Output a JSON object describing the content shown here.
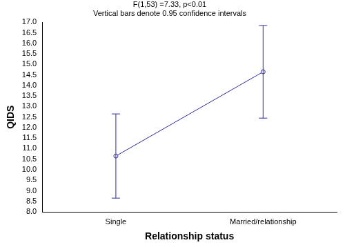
{
  "chart_data": {
    "type": "line",
    "title": [
      "F(1,53) =7.33, p<0.01",
      "Vertical bars denote 0.95 confidence intervals"
    ],
    "x_label": "Relationship status",
    "y_label": "QIDS",
    "categories": [
      "Single",
      "Married/relationship"
    ],
    "values": [
      10.65,
      14.65
    ],
    "ci_low": [
      8.65,
      12.45
    ],
    "ci_high": [
      12.65,
      16.85
    ],
    "color": "#2a2aa0",
    "marker": "circle",
    "line_style": "solid",
    "grid": false,
    "ylim": [
      8.0,
      17.0
    ],
    "yticks": [
      {
        "value": 8,
        "label": "8.0"
      },
      8.5,
      {
        "value": 9,
        "label": "9.0"
      },
      9.5,
      {
        "value": 10,
        "label": "10.0"
      },
      10.5,
      {
        "value": 11,
        "label": "11.0"
      },
      11.5,
      {
        "value": 12,
        "label": "12.0"
      },
      12.5,
      {
        "value": 13,
        "label": "13.0"
      },
      13.5,
      {
        "value": 14,
        "label": "14.0"
      },
      14.5,
      {
        "value": 15,
        "label": "15.0"
      },
      15.5,
      {
        "value": 16,
        "label": "16.0"
      },
      16.5,
      {
        "value": 17,
        "label": "17.0"
      }
    ]
  }
}
